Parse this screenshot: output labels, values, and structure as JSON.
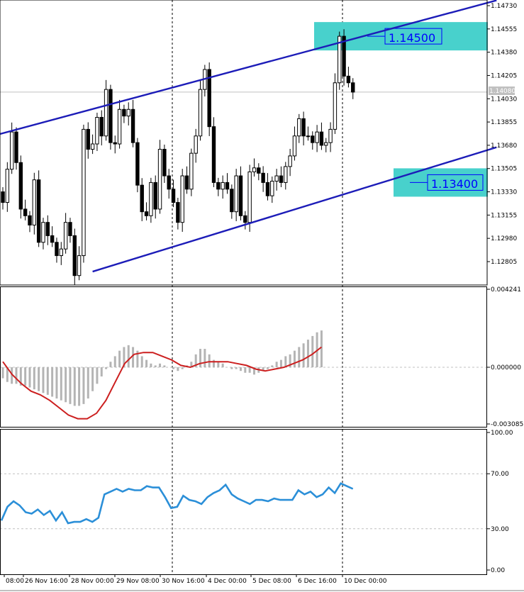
{
  "chart_data": [
    {
      "type": "candlestick",
      "price_axis_ticks": [
        "1.14730",
        "1.14555",
        "1.14380",
        "1.14205",
        "1.14030",
        "1.13855",
        "1.13680",
        "1.13505",
        "1.13330",
        "1.13155",
        "1.12980",
        "1.12805"
      ],
      "ylim": [
        1.1272,
        1.1482
      ],
      "current_price": "1.14080",
      "time_axis_labels": [
        "08:00",
        "26 Nov 16:00",
        "28 Nov 00:00",
        "29 Nov 08:00",
        "30 Nov 16:00",
        "4 Dec 00:00",
        "5 Dec 08:00",
        "6 Dec 16:00",
        "10 Dec 00:00"
      ],
      "levels": [
        {
          "label": "1.14500",
          "value": 1.145
        },
        {
          "label": "1.13400",
          "value": 1.134
        }
      ],
      "channel": {
        "upper": {
          "start": [
            0,
            1.13765
          ],
          "end": [
            110,
            1.1477
          ]
        },
        "lower": {
          "start": [
            20,
            1.1273
          ],
          "end": [
            110,
            1.13665
          ]
        }
      },
      "close": [
        1.1325,
        1.135,
        1.1378,
        1.1355,
        1.132,
        1.1315,
        1.1308,
        1.1342,
        1.1295,
        1.131,
        1.13,
        1.1295,
        1.1285,
        1.129,
        1.131,
        1.13,
        1.127,
        1.1285,
        1.138,
        1.1365,
        1.1369,
        1.1389,
        1.1375,
        1.141,
        1.137,
        1.1369,
        1.1395,
        1.139,
        1.1395,
        1.137,
        1.1338,
        1.1318,
        1.1315,
        1.134,
        1.132,
        1.1365,
        1.1345,
        1.1335,
        1.1325,
        1.131,
        1.1345,
        1.1335,
        1.1362,
        1.1375,
        1.141,
        1.1425,
        1.1382,
        1.134,
        1.1335,
        1.134,
        1.1335,
        1.1318,
        1.1345,
        1.1315,
        1.131,
        1.1348,
        1.1351,
        1.1347,
        1.134,
        1.133,
        1.1341,
        1.1345,
        1.134,
        1.1352,
        1.136,
        1.1375,
        1.1388,
        1.1375,
        1.1375,
        1.137,
        1.1378,
        1.1368,
        1.137,
        1.138,
        1.1415,
        1.145,
        1.142,
        1.1415,
        1.1408
      ],
      "indicators": [
        {
          "name": "",
          "type": "histogram+signal",
          "axis_labels": [
            "0.004241",
            "0.000000",
            "-0.003085"
          ],
          "ylim": [
            -0.003085,
            0.004241
          ],
          "histogram": [
            -0.0006,
            -0.0008,
            -0.0009,
            -0.0009,
            -0.001,
            -0.001,
            -0.0011,
            -0.0012,
            -0.0013,
            -0.0014,
            -0.0015,
            -0.0016,
            -0.0017,
            -0.0018,
            -0.0019,
            -0.002,
            -0.0021,
            -0.0021,
            -0.002,
            -0.0017,
            -0.0013,
            -0.0009,
            -0.0005,
            -0.0001,
            0.0003,
            0.0006,
            0.0009,
            0.0011,
            0.0012,
            0.0011,
            0.0009,
            0.0006,
            0.0004,
            0.0002,
            0.0001,
            0.0002,
            0.0001,
            0.0,
            -0.0001,
            -0.0002,
            -0.0001,
            0.0001,
            0.0003,
            0.0007,
            0.001,
            0.001,
            0.0007,
            0.0004,
            0.0003,
            0.0002,
            0.0,
            -0.0001,
            -0.0001,
            -0.0002,
            -0.0003,
            -0.0003,
            -0.0004,
            -0.0003,
            -0.0002,
            -0.0001,
            0.0001,
            0.0003,
            0.0004,
            0.0006,
            0.0007,
            0.0009,
            0.0011,
            0.0013,
            0.0015,
            0.0017,
            0.0019,
            0.002
          ],
          "signal": [
            0.0003,
            -0.0004,
            -0.0009,
            -0.0013,
            -0.0015,
            -0.0018,
            -0.0022,
            -0.0026,
            -0.0028,
            -0.0028,
            -0.0025,
            -0.0018,
            -0.0008,
            0.0002,
            0.0007,
            0.0008,
            0.0008,
            0.0006,
            0.0004,
            0.0001,
            0.0,
            0.0002,
            0.0003,
            0.0003,
            0.0003,
            0.0002,
            0.0001,
            -0.0001,
            -0.0002,
            -0.0001,
            0.0,
            0.0002,
            0.0004,
            0.0007,
            0.0011
          ]
        },
        {
          "name": "",
          "type": "oscillator",
          "axis_labels": [
            "100.00",
            "70.00",
            "30.00",
            "0.00"
          ],
          "ylim": [
            0,
            100
          ],
          "levels": [
            70,
            30
          ],
          "values": [
            36,
            46,
            50,
            47,
            42,
            41,
            44,
            40,
            43,
            36,
            42,
            34,
            35,
            35,
            37,
            35,
            38,
            55,
            57,
            59,
            57,
            59,
            58,
            58,
            61,
            60,
            60,
            53,
            45,
            46,
            54,
            51,
            50,
            48,
            53,
            56,
            58,
            62,
            55,
            52,
            50,
            48,
            51,
            51,
            50,
            52,
            51,
            51,
            51,
            58,
            55,
            57,
            53,
            55,
            60,
            56,
            63,
            61,
            59
          ]
        }
      ]
    }
  ]
}
